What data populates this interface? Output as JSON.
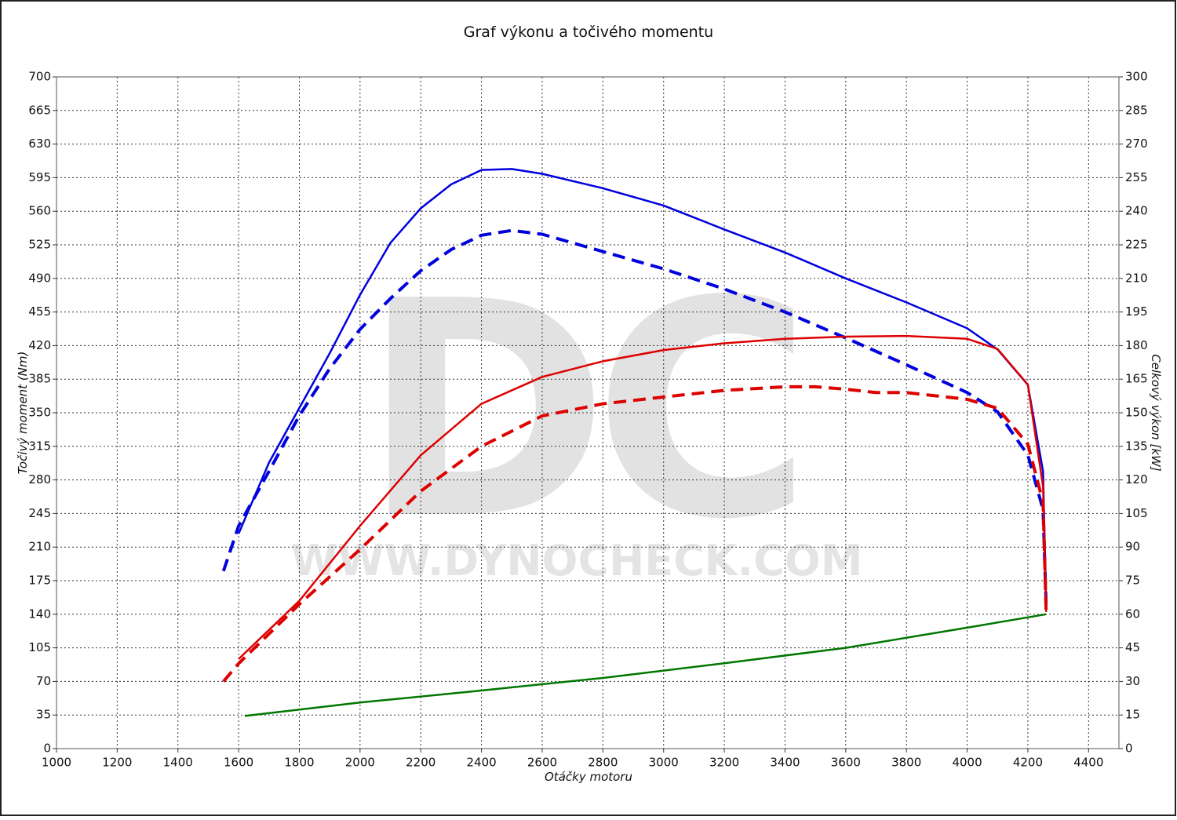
{
  "chart_data": {
    "type": "line",
    "title": "Graf výkonu a točivého momentu",
    "x_label": "Otáčky motoru",
    "y_label": "Točivý moment (Nm)",
    "y2_label": "Celkový výkon [kW]",
    "watermark": {
      "logo": "DC",
      "url": "WWW.DYNOCHECK.COM"
    },
    "grid": true,
    "xlim": [
      1000,
      4500
    ],
    "xticks": [
      1000,
      1200,
      1400,
      1600,
      1800,
      2000,
      2200,
      2400,
      2600,
      2800,
      3000,
      3200,
      3400,
      3600,
      3800,
      4000,
      4200,
      4400
    ],
    "ylim": [
      0,
      700
    ],
    "yticks": [
      0,
      35,
      70,
      105,
      140,
      175,
      210,
      245,
      280,
      315,
      350,
      385,
      420,
      455,
      490,
      525,
      560,
      595,
      630,
      665,
      700
    ],
    "y2lim": [
      0,
      300
    ],
    "y2ticks": [
      0,
      15,
      30,
      45,
      60,
      75,
      90,
      105,
      120,
      135,
      150,
      165,
      180,
      195,
      210,
      225,
      240,
      255,
      270,
      285,
      300
    ],
    "series": [
      {
        "color": "#0000dd",
        "dash": false,
        "axis": "y",
        "x": [
          1600,
          1700,
          1800,
          1900,
          2000,
          2100,
          2200,
          2300,
          2400,
          2500,
          2600,
          2800,
          3000,
          3200,
          3400,
          3600,
          3800,
          4000,
          4100,
          4200,
          4250,
          4260
        ],
        "values": [
          224,
          298,
          355,
          412,
          473,
          527,
          563,
          588,
          603,
          604,
          599,
          584,
          566,
          541,
          517,
          490,
          465,
          438,
          416,
          379,
          289,
          150
        ]
      },
      {
        "color": "#0000dd",
        "dash": true,
        "axis": "y",
        "x": [
          1550,
          1600,
          1700,
          1800,
          1900,
          2000,
          2100,
          2200,
          2300,
          2400,
          2500,
          2600,
          2800,
          3000,
          3200,
          3400,
          3600,
          3800,
          4000,
          4100,
          4200,
          4250,
          4260
        ],
        "values": [
          185,
          232,
          289,
          347,
          396,
          437,
          469,
          498,
          520,
          535,
          540,
          536,
          518,
          500,
          479,
          455,
          428,
          400,
          371,
          351,
          306,
          249,
          150
        ]
      },
      {
        "color": "#dd0000",
        "dash": false,
        "axis": "y2",
        "x": [
          1600,
          1800,
          2000,
          2200,
          2400,
          2600,
          2800,
          3000,
          3200,
          3400,
          3600,
          3800,
          4000,
          4100,
          4200,
          4250,
          4260
        ],
        "values": [
          40,
          66,
          99.5,
          131,
          154,
          166,
          173,
          178,
          181,
          183,
          184,
          184.3,
          183,
          178.5,
          162.6,
          117,
          61
        ]
      },
      {
        "color": "#dd0000",
        "dash": true,
        "axis": "y2",
        "x": [
          1550,
          1600,
          1800,
          2000,
          2200,
          2400,
          2600,
          2800,
          3000,
          3200,
          3400,
          3500,
          3600,
          3700,
          3800,
          4000,
          4100,
          4200,
          4250,
          4260
        ],
        "values": [
          30,
          38,
          64.5,
          89,
          115,
          135,
          148.6,
          154,
          157,
          160,
          161.6,
          161.6,
          160.5,
          159,
          159,
          156,
          152,
          136,
          110,
          61
        ]
      },
      {
        "color": "#007700",
        "dash": false,
        "axis": "y",
        "x": [
          1620,
          2000,
          2400,
          2800,
          3200,
          3600,
          4000,
          4260
        ],
        "values": [
          34,
          48,
          60.5,
          73.6,
          89,
          105,
          126,
          140
        ]
      }
    ]
  }
}
